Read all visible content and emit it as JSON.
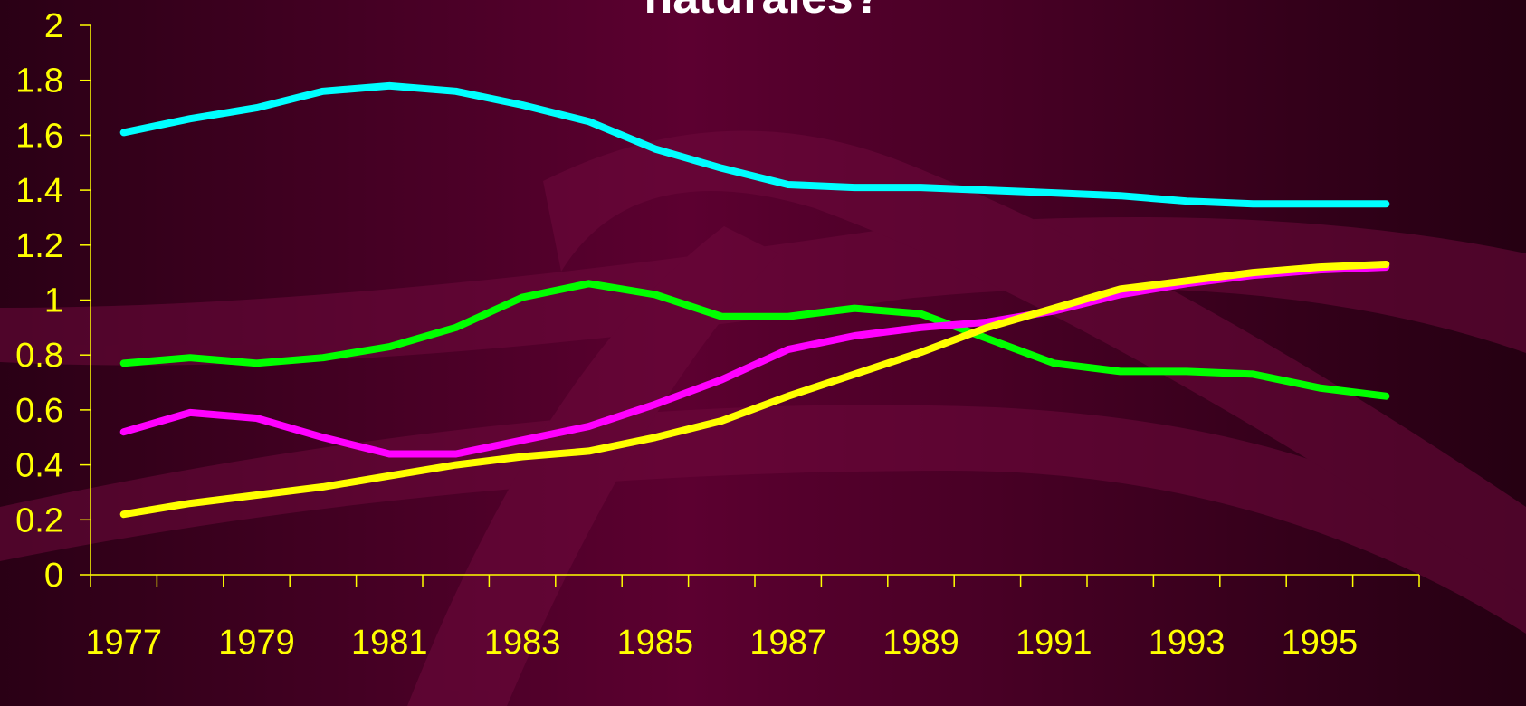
{
  "chart_data": {
    "type": "line",
    "title": "naturales?",
    "categories": [
      "1977",
      null,
      "1979",
      null,
      "1981",
      null,
      "1983",
      null,
      "1985",
      null,
      "1987",
      null,
      "1989",
      null,
      "1991",
      null,
      "1993",
      null,
      "1995",
      null
    ],
    "series": [
      {
        "color": "#00ffff",
        "values": [
          1.61,
          1.66,
          1.7,
          1.76,
          1.78,
          1.76,
          1.71,
          1.65,
          1.55,
          1.48,
          1.42,
          1.41,
          1.41,
          1.4,
          1.39,
          1.38,
          1.36,
          1.35,
          1.35,
          1.35
        ]
      },
      {
        "color": "#00ff00",
        "values": [
          0.77,
          0.79,
          0.77,
          0.79,
          0.83,
          0.9,
          1.01,
          1.06,
          1.02,
          0.94,
          0.94,
          0.97,
          0.95,
          0.86,
          0.77,
          0.74,
          0.74,
          0.73,
          0.68,
          0.65
        ]
      },
      {
        "color": "#ff00ff",
        "values": [
          0.52,
          0.59,
          0.57,
          0.5,
          0.44,
          0.44,
          0.49,
          0.54,
          0.62,
          0.71,
          0.82,
          0.87,
          0.9,
          0.92,
          0.96,
          1.02,
          1.06,
          1.09,
          1.11,
          1.12
        ]
      },
      {
        "color": "#ffff00",
        "values": [
          0.22,
          0.26,
          0.29,
          0.32,
          0.36,
          0.4,
          0.43,
          0.45,
          0.5,
          0.56,
          0.65,
          0.73,
          0.81,
          0.9,
          0.97,
          1.04,
          1.07,
          1.1,
          1.12,
          1.13
        ]
      }
    ],
    "ylim": [
      0,
      2
    ],
    "yticks": [
      0,
      0.2,
      0.4,
      0.6,
      0.8,
      1,
      1.2,
      1.4,
      1.6,
      1.8,
      2
    ],
    "axis_color": "#ffff00"
  }
}
